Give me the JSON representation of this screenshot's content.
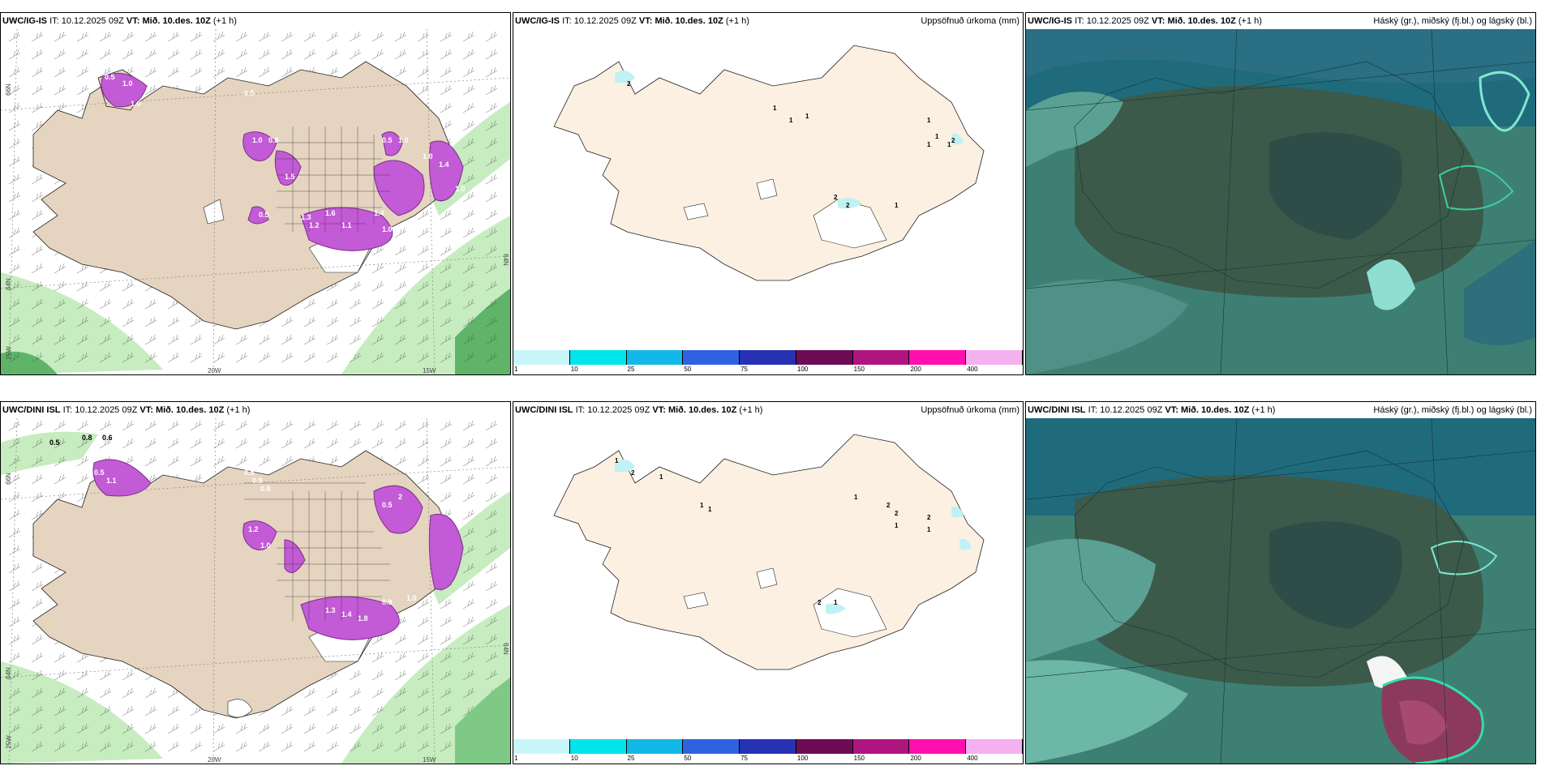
{
  "panels": [
    {
      "id": "wind-igs",
      "model": "UWC/IG-IS",
      "it_label": "IT:",
      "it": "10.12.2025 09Z",
      "vt_label": "VT:",
      "vt": "Mið. 10.des. 10Z",
      "lead": "(+1 h)",
      "right": ""
    },
    {
      "id": "precip-igs",
      "model": "UWC/IG-IS",
      "it_label": "IT:",
      "it": "10.12.2025 09Z",
      "vt_label": "VT:",
      "vt": "Mið. 10.des. 10Z",
      "lead": "(+1 h)",
      "right": "Uppsöfnuð úrkoma (mm)"
    },
    {
      "id": "cloud-igs",
      "model": "UWC/IG-IS",
      "it_label": "IT:",
      "it": "10.12.2025 09Z",
      "vt_label": "VT:",
      "vt": "Mið. 10.des. 10Z",
      "lead": "(+1 h)",
      "right": "Háský (gr.), miðský (fj.bl.) og lágský (bl.)"
    },
    {
      "id": "wind-dini",
      "model": "UWC/DINI ISL",
      "it_label": "IT:",
      "it": "10.12.2025 09Z",
      "vt_label": "VT:",
      "vt": "Mið. 10.des. 10Z",
      "lead": "(+1 h)",
      "right": ""
    },
    {
      "id": "precip-dini",
      "model": "UWC/DINI ISL",
      "it_label": "IT:",
      "it": "10.12.2025 09Z",
      "vt_label": "VT:",
      "vt": "Mið. 10.des. 10Z",
      "lead": "(+1 h)",
      "right": "Uppsöfnuð úrkoma (mm)"
    },
    {
      "id": "cloud-dini",
      "model": "UWC/DINI ISL",
      "it_label": "IT:",
      "it": "10.12.2025 09Z",
      "vt_label": "VT:",
      "vt": "Mið. 10.des. 10Z",
      "lead": "(+1 h)",
      "right": "Háský (gr.), miðský (fj.bl.) og lágský (bl.)"
    }
  ],
  "axis_labels": {
    "lat66": "66N",
    "lat64": "64N",
    "lat64b": "64N",
    "lon25": "25W",
    "lon20": "20W",
    "lon15": "15W"
  },
  "colorbar": {
    "ticks": [
      "1",
      "10",
      "25",
      "50",
      "75",
      "100",
      "150",
      "200",
      "400"
    ],
    "colors": [
      "#c8f5f8",
      "#00e5ec",
      "#12b9e8",
      "#2f62e2",
      "#2631b4",
      "#6e0b55",
      "#b0157f",
      "#ff0fb0",
      "#f5b0ef"
    ]
  },
  "precip_labels_top": [
    "2",
    "1",
    "1",
    "1",
    "1",
    "1",
    "1",
    "1",
    "2",
    "2",
    "1",
    "2"
  ],
  "precip_labels_bottom": [
    "1",
    "2",
    "1",
    "1",
    "1",
    "1",
    "2",
    "2",
    "2",
    "1",
    "1",
    "2",
    "1"
  ],
  "wind_labels_top": [
    "0.5",
    "1.0",
    "1.0",
    "0.5",
    "1.0",
    "0.8",
    "0.5",
    "1.0",
    "1.5",
    "1.0",
    "1.4",
    "1.6",
    "1.2",
    "1.1",
    "1.4",
    "1.0",
    "0.5",
    "1.3",
    "1.0"
  ],
  "wind_labels_bottom": [
    "0.5",
    "0.8",
    "0.6",
    "0.5",
    "1.1",
    "0.5",
    "0.9",
    "0.8",
    "1.2",
    "1.0",
    "0.5",
    "2",
    "1.3",
    "1.4",
    "1.8",
    "0.9",
    "1.0"
  ],
  "colors": {
    "land": "#e8d8c4",
    "land_precip": "#fcf0e2",
    "cloud_dark": "#2f5a55",
    "cloud_mid": "#4f9188",
    "cloud_light": "#7fd2c2",
    "ocean_cloud": "#1e6e80",
    "green_wind": "#b8e8b0",
    "purple": "#c857d8"
  }
}
